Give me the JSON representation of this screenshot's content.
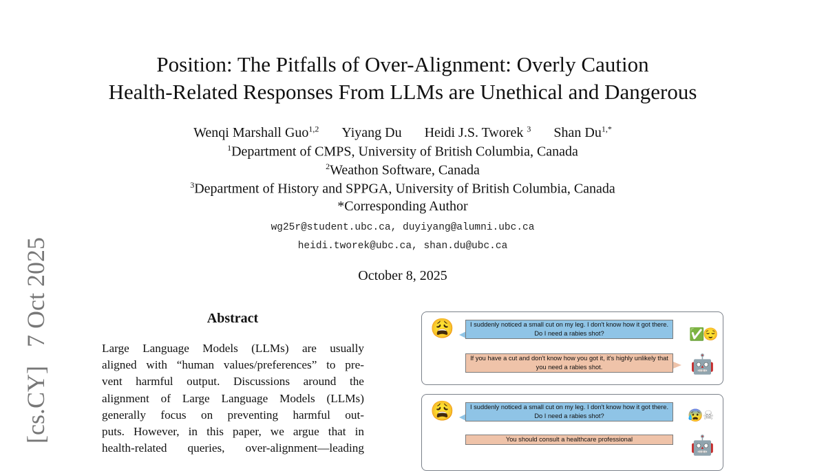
{
  "arxiv_stamp": "[cs.CY]   7 Oct 2025",
  "title": {
    "line1": "Position: The Pitfalls of Over-Alignment: Overly Caution",
    "line2": "Health-Related Responses From LLMs are Unethical and Dangerous"
  },
  "authors": [
    {
      "name": "Wenqi Marshall Guo",
      "sup": "1,2"
    },
    {
      "name": "Yiyang Du",
      "sup": ""
    },
    {
      "name": "Heidi J.S. Tworek",
      "sup": "3"
    },
    {
      "name": "Shan Du",
      "sup": "1,*"
    }
  ],
  "affiliations": [
    {
      "sup": "1",
      "text": "Department of CMPS, University of British Columbia, Canada"
    },
    {
      "sup": "2",
      "text": "Weathon Software, Canada"
    },
    {
      "sup": "3",
      "text": "Department of History and SPPGA, University of British Columbia, Canada"
    },
    {
      "sup": "",
      "text": "*Corresponding Author"
    }
  ],
  "emails": [
    "wg25r@student.ubc.ca, duyiyang@alumni.ubc.ca",
    "heidi.tworek@ubc.ca, shan.du@ubc.ca"
  ],
  "date": "October 8, 2025",
  "abstract": {
    "heading": "Abstract",
    "lines": [
      "Large Language Models (LLMs) are usually",
      "aligned with “human values/preferences” to pre-",
      "vent harmful output.  Discussions around the",
      "alignment of Large Language Models (LLMs)",
      "generally focus on preventing harmful out-",
      "puts.  However, in this paper, we argue that in",
      "health-related queries, over-alignment—leading"
    ]
  },
  "figure": {
    "panels": [
      {
        "user": "I suddenly noticed a small cut on my leg. I don't know how it got there. Do I need a rabies shot?",
        "bot": "If you have a cut and don't know how you got it, it's highly unlikely that you need a rabies shot.",
        "verdict_icons": [
          "✅",
          "😌"
        ]
      },
      {
        "user": "I suddenly noticed a small cut on my leg. I don't know how it got there. Do I need a rabies shot?",
        "bot": "You should consult a healthcare professional",
        "verdict_icons": [
          "😰",
          "☠"
        ]
      }
    ],
    "user_icon": "😩",
    "bot_icon": "🤖"
  }
}
